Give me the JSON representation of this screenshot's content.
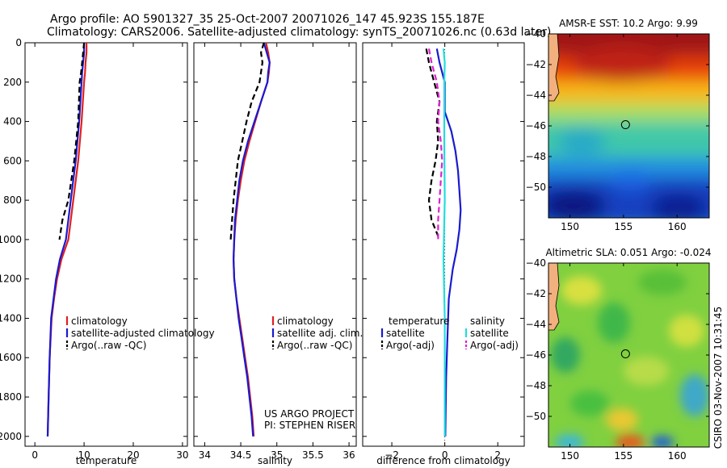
{
  "header": {
    "line1": "Argo profile: AO 5901327_35 25-Oct-2007 20071026_147 45.923S 155.187E",
    "line2": "Climatology: CARS2006. Satellite-adjusted climatology: synTS_20071026.nc (0.63d later)"
  },
  "side_label": "CSIRO 03-Nov-2007 10:31:45",
  "project": {
    "line1": "US ARGO PROJECT",
    "line2": "PI: STEPHEN RISER"
  },
  "colors": {
    "climatology": "#e02020",
    "satellite": "#1a1ad0",
    "argo": "#000000",
    "sat_sal": "#22dddd",
    "argo_sal": "#e020d0"
  },
  "chart_data": [
    {
      "type": "line",
      "name": "temperature-profile",
      "xlabel": "temperature",
      "ylabel": "",
      "xlim": [
        -2,
        31
      ],
      "ylim": [
        0,
        2050
      ],
      "y_reversed": true,
      "xticks": [
        0,
        10,
        20,
        30
      ],
      "yticks": [
        0,
        200,
        400,
        600,
        800,
        1000,
        1200,
        1400,
        1600,
        1800,
        2000
      ],
      "legend": {
        "entries": [
          "climatology",
          "satellite-adjusted climatology",
          "Argo(..raw -QC)"
        ]
      },
      "series": [
        {
          "name": "climatology",
          "color": "#e02020",
          "dash": false,
          "points": [
            [
              10.5,
              0
            ],
            [
              10.5,
              50
            ],
            [
              10.3,
              100
            ],
            [
              10.2,
              150
            ],
            [
              10.0,
              200
            ],
            [
              9.5,
              400
            ],
            [
              8.8,
              600
            ],
            [
              7.8,
              800
            ],
            [
              6.8,
              1000
            ],
            [
              5.4,
              1100
            ],
            [
              4.5,
              1200
            ],
            [
              3.9,
              1300
            ],
            [
              3.4,
              1400
            ],
            [
              3.0,
              1600
            ],
            [
              2.8,
              1800
            ],
            [
              2.6,
              2000
            ]
          ]
        },
        {
          "name": "satellite-adjusted climatology",
          "color": "#1a1ad0",
          "dash": false,
          "points": [
            [
              10.0,
              0
            ],
            [
              10.0,
              50
            ],
            [
              9.8,
              100
            ],
            [
              9.6,
              150
            ],
            [
              9.5,
              200
            ],
            [
              9.0,
              400
            ],
            [
              8.3,
              600
            ],
            [
              7.3,
              800
            ],
            [
              6.3,
              1000
            ],
            [
              5.1,
              1100
            ],
            [
              4.3,
              1200
            ],
            [
              3.8,
              1300
            ],
            [
              3.3,
              1400
            ],
            [
              3.0,
              1600
            ],
            [
              2.8,
              1800
            ],
            [
              2.6,
              2000
            ]
          ]
        },
        {
          "name": "Argo(..raw -QC)",
          "color": "#000000",
          "dash": true,
          "points": [
            [
              10.0,
              0
            ],
            [
              9.8,
              50
            ],
            [
              9.6,
              100
            ],
            [
              9.4,
              150
            ],
            [
              9.1,
              200
            ],
            [
              8.8,
              400
            ],
            [
              8.0,
              600
            ],
            [
              6.8,
              800
            ],
            [
              5.6,
              900
            ],
            [
              5.0,
              1000
            ]
          ]
        }
      ]
    },
    {
      "type": "line",
      "name": "salinity-profile",
      "xlabel": "salinity",
      "ylabel": "",
      "xlim": [
        33.85,
        36.1
      ],
      "ylim": [
        0,
        2050
      ],
      "y_reversed": true,
      "xticks": [
        34,
        34.5,
        35,
        35.5,
        36
      ],
      "yticks": [
        0,
        200,
        400,
        600,
        800,
        1000,
        1200,
        1400,
        1600,
        1800,
        2000
      ],
      "legend": {
        "entries": [
          "climatology",
          "satellite adj. clim.",
          "Argo(..raw -QC)"
        ]
      },
      "series": [
        {
          "name": "climatology",
          "color": "#e02020",
          "dash": false,
          "points": [
            [
              34.85,
              0
            ],
            [
              34.88,
              50
            ],
            [
              34.9,
              100
            ],
            [
              34.89,
              150
            ],
            [
              34.87,
              200
            ],
            [
              34.78,
              300
            ],
            [
              34.7,
              400
            ],
            [
              34.62,
              500
            ],
            [
              34.55,
              600
            ],
            [
              34.5,
              700
            ],
            [
              34.46,
              800
            ],
            [
              34.43,
              900
            ],
            [
              34.41,
              1000
            ],
            [
              34.4,
              1100
            ],
            [
              34.41,
              1200
            ],
            [
              34.44,
              1300
            ],
            [
              34.48,
              1400
            ],
            [
              34.52,
              1500
            ],
            [
              34.56,
              1600
            ],
            [
              34.6,
              1700
            ],
            [
              34.63,
              1800
            ],
            [
              34.66,
              1900
            ],
            [
              34.68,
              2000
            ]
          ]
        },
        {
          "name": "satellite adj. clim.",
          "color": "#1a1ad0",
          "dash": false,
          "points": [
            [
              34.82,
              0
            ],
            [
              34.86,
              50
            ],
            [
              34.9,
              100
            ],
            [
              34.88,
              150
            ],
            [
              34.87,
              200
            ],
            [
              34.78,
              300
            ],
            [
              34.69,
              400
            ],
            [
              34.6,
              500
            ],
            [
              34.53,
              600
            ],
            [
              34.48,
              700
            ],
            [
              34.45,
              800
            ],
            [
              34.42,
              900
            ],
            [
              34.41,
              1000
            ],
            [
              34.4,
              1100
            ],
            [
              34.41,
              1200
            ],
            [
              34.44,
              1300
            ],
            [
              34.47,
              1400
            ],
            [
              34.51,
              1500
            ],
            [
              34.55,
              1600
            ],
            [
              34.59,
              1700
            ],
            [
              34.62,
              1800
            ],
            [
              34.65,
              1900
            ],
            [
              34.67,
              2000
            ]
          ]
        },
        {
          "name": "Argo(..raw -QC)",
          "color": "#000000",
          "dash": true,
          "points": [
            [
              34.82,
              0
            ],
            [
              34.78,
              50
            ],
            [
              34.8,
              100
            ],
            [
              34.78,
              150
            ],
            [
              34.76,
              200
            ],
            [
              34.65,
              300
            ],
            [
              34.58,
              400
            ],
            [
              34.52,
              500
            ],
            [
              34.46,
              600
            ],
            [
              34.43,
              700
            ],
            [
              34.4,
              800
            ],
            [
              34.38,
              900
            ],
            [
              34.36,
              1000
            ]
          ]
        }
      ]
    },
    {
      "type": "line",
      "name": "difference-profile",
      "xlabel": "difference from climatology",
      "ylabel": "",
      "xlim": [
        -3.1,
        3.0
      ],
      "ylim": [
        0,
        2050
      ],
      "y_reversed": true,
      "xticks": [
        -2,
        0,
        2
      ],
      "yticks": [
        0,
        200,
        400,
        600,
        800,
        1000,
        1200,
        1400,
        1600,
        1800,
        2000
      ],
      "legend": {
        "temperature": {
          "title": "temperature",
          "entries": [
            "satellite",
            "Argo(-adj)"
          ]
        },
        "salinity": {
          "title": "salinity",
          "entries": [
            "satellite",
            "Argo(-adj)"
          ]
        }
      },
      "series": [
        {
          "name": "temperature satellite",
          "color": "#1a1ad0",
          "dash": false,
          "points": [
            [
              -0.3,
              30
            ],
            [
              -0.2,
              100
            ],
            [
              0.0,
              200
            ],
            [
              0.0,
              350
            ],
            [
              0.25,
              450
            ],
            [
              0.4,
              550
            ],
            [
              0.5,
              650
            ],
            [
              0.55,
              750
            ],
            [
              0.6,
              850
            ],
            [
              0.55,
              950
            ],
            [
              0.45,
              1050
            ],
            [
              0.3,
              1150
            ],
            [
              0.15,
              1300
            ],
            [
              0.1,
              1500
            ],
            [
              0.05,
              1700
            ],
            [
              0.02,
              2000
            ]
          ]
        },
        {
          "name": "salinity satellite",
          "color": "#22dddd",
          "dash": false,
          "points": [
            [
              -0.05,
              30
            ],
            [
              0.0,
              100
            ],
            [
              -0.02,
              200
            ],
            [
              -0.02,
              500
            ],
            [
              0.0,
              800
            ],
            [
              -0.05,
              1100
            ],
            [
              0.0,
              1400
            ],
            [
              0.0,
              2000
            ]
          ]
        },
        {
          "name": "temperature Argo(-adj)",
          "color": "#000000",
          "dash": true,
          "points": [
            [
              -0.7,
              30
            ],
            [
              -0.6,
              100
            ],
            [
              -0.5,
              150
            ],
            [
              -0.4,
              200
            ],
            [
              -0.2,
              300
            ],
            [
              -0.3,
              400
            ],
            [
              -0.25,
              500
            ],
            [
              -0.35,
              600
            ],
            [
              -0.5,
              700
            ],
            [
              -0.6,
              800
            ],
            [
              -0.5,
              900
            ],
            [
              -0.2,
              1000
            ]
          ]
        },
        {
          "name": "salinity Argo(-adj)",
          "color": "#e020d0",
          "dash": true,
          "points": [
            [
              -0.6,
              30
            ],
            [
              -0.5,
              100
            ],
            [
              -0.3,
              200
            ],
            [
              -0.2,
              300
            ],
            [
              -0.25,
              400
            ],
            [
              -0.15,
              500
            ],
            [
              -0.1,
              600
            ],
            [
              -0.15,
              700
            ],
            [
              -0.2,
              800
            ],
            [
              -0.25,
              900
            ],
            [
              -0.25,
              1000
            ]
          ]
        }
      ]
    },
    {
      "type": "heatmap",
      "name": "sst-map",
      "title": "AMSR-E SST: 10.2 Argo: 9.99",
      "xlim": [
        148,
        163
      ],
      "ylim": [
        -52,
        -40
      ],
      "xticks": [
        150,
        155,
        160
      ],
      "yticks": [
        -40,
        -42,
        -44,
        -46,
        -48,
        -50
      ],
      "marker": [
        155.187,
        -45.923
      ]
    },
    {
      "type": "heatmap",
      "name": "sla-map",
      "title": "Altimetric SLA: 0.051 Argo: -0.024",
      "xlim": [
        148,
        163
      ],
      "ylim": [
        -52,
        -40
      ],
      "xticks": [
        150,
        155,
        160
      ],
      "yticks": [
        -40,
        -42,
        -44,
        -46,
        -48,
        -50
      ],
      "marker": [
        155.187,
        -45.923
      ]
    }
  ]
}
